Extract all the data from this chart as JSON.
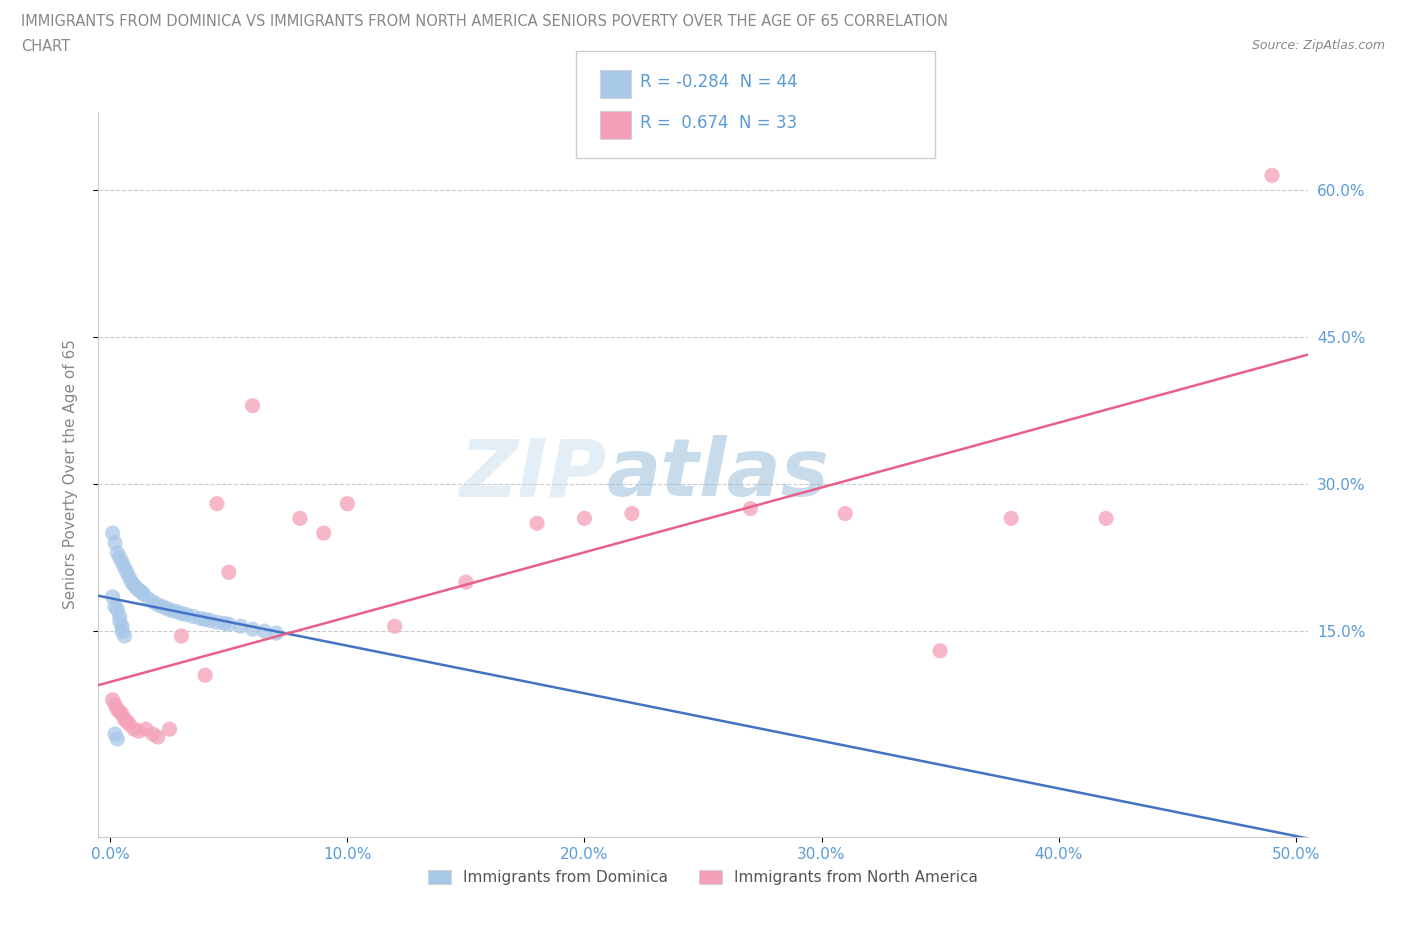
{
  "title_line1": "IMMIGRANTS FROM DOMINICA VS IMMIGRANTS FROM NORTH AMERICA SENIORS POVERTY OVER THE AGE OF 65 CORRELATION",
  "title_line2": "CHART",
  "source_text": "Source: ZipAtlas.com",
  "ylabel": "Seniors Poverty Over the Age of 65",
  "xlim": [
    -0.005,
    0.505
  ],
  "ylim": [
    -0.06,
    0.68
  ],
  "xtick_labels": [
    "0.0%",
    "10.0%",
    "20.0%",
    "30.0%",
    "40.0%",
    "50.0%"
  ],
  "xtick_values": [
    0.0,
    0.1,
    0.2,
    0.3,
    0.4,
    0.5
  ],
  "ytick_labels": [
    "15.0%",
    "30.0%",
    "45.0%",
    "60.0%"
  ],
  "ytick_values": [
    0.15,
    0.3,
    0.45,
    0.6
  ],
  "watermark_zip": "ZIP",
  "watermark_atlas": "atlas",
  "color_blue": "#a8c8e8",
  "color_pink": "#f4a0b8",
  "color_trendline_blue": "#4472c4",
  "color_trendline_pink": "#e8608a",
  "legend_label1": "R = -0.284  N = 44",
  "legend_label2": "R =  0.674  N = 33",
  "bottom_legend1": "Immigrants from Dominica",
  "bottom_legend2": "Immigrants from North America",
  "blue_scatter_x": [
    0.001,
    0.002,
    0.003,
    0.004,
    0.005,
    0.006,
    0.007,
    0.008,
    0.009,
    0.01,
    0.011,
    0.012,
    0.013,
    0.014,
    0.016,
    0.018,
    0.02,
    0.022,
    0.024,
    0.026,
    0.028,
    0.03,
    0.032,
    0.035,
    0.038,
    0.04,
    0.042,
    0.045,
    0.048,
    0.05,
    0.055,
    0.06,
    0.065,
    0.07,
    0.001,
    0.002,
    0.003,
    0.004,
    0.004,
    0.005,
    0.005,
    0.006,
    0.002,
    0.003
  ],
  "blue_scatter_y": [
    0.25,
    0.24,
    0.23,
    0.225,
    0.22,
    0.215,
    0.21,
    0.205,
    0.2,
    0.197,
    0.194,
    0.192,
    0.19,
    0.188,
    0.183,
    0.18,
    0.177,
    0.175,
    0.173,
    0.171,
    0.17,
    0.168,
    0.167,
    0.165,
    0.163,
    0.162,
    0.161,
    0.159,
    0.158,
    0.157,
    0.155,
    0.152,
    0.15,
    0.148,
    0.185,
    0.175,
    0.172,
    0.165,
    0.16,
    0.155,
    0.15,
    0.145,
    0.045,
    0.04
  ],
  "pink_scatter_x": [
    0.001,
    0.002,
    0.003,
    0.004,
    0.005,
    0.006,
    0.007,
    0.008,
    0.01,
    0.012,
    0.015,
    0.018,
    0.02,
    0.025,
    0.03,
    0.04,
    0.045,
    0.05,
    0.06,
    0.08,
    0.09,
    0.1,
    0.12,
    0.15,
    0.18,
    0.2,
    0.22,
    0.27,
    0.31,
    0.35,
    0.38,
    0.42,
    0.49
  ],
  "pink_scatter_y": [
    0.08,
    0.075,
    0.07,
    0.068,
    0.065,
    0.06,
    0.058,
    0.055,
    0.05,
    0.048,
    0.05,
    0.045,
    0.042,
    0.05,
    0.145,
    0.105,
    0.28,
    0.21,
    0.38,
    0.265,
    0.25,
    0.28,
    0.155,
    0.2,
    0.26,
    0.265,
    0.27,
    0.275,
    0.27,
    0.13,
    0.265,
    0.265,
    0.615
  ]
}
